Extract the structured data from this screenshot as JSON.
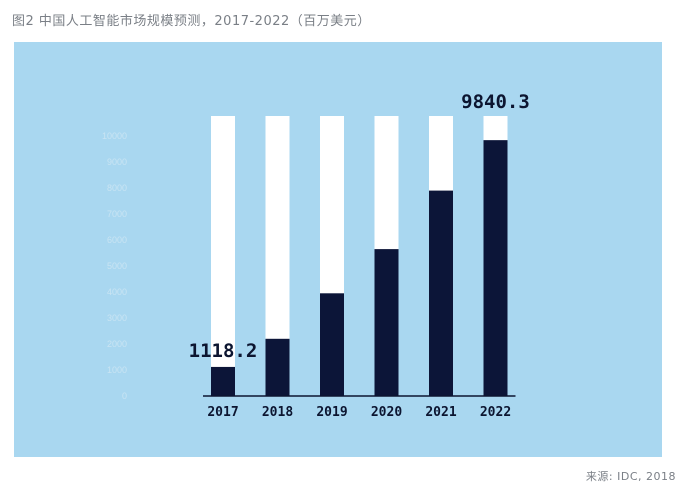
{
  "figure": {
    "title": "图2 中国人工智能市场规模预测，2017-2022（百万美元）",
    "source": "来源: IDC, 2018"
  },
  "colors": {
    "background_panel": "#a9d7f0",
    "bar_value": "#0c1538",
    "bar_track": "#ffffff",
    "tick_text": "#c9e4f3",
    "label_text": "#0c1530"
  },
  "chart_data": {
    "type": "bar",
    "title": "图2 中国人工智能市场规模预测，2017-2022（百万美元）",
    "xlabel": "",
    "ylabel": "",
    "categories": [
      "2017",
      "2018",
      "2019",
      "2020",
      "2021",
      "2022"
    ],
    "values": [
      1118.2,
      2200,
      3950,
      5650,
      7900,
      9840.3
    ],
    "ylim": [
      0,
      10000
    ],
    "yticks": [
      "0",
      "1000",
      "2000",
      "3000",
      "4000",
      "5000",
      "6000",
      "7000",
      "8000",
      "9000",
      "10000"
    ],
    "data_labels": [
      {
        "category": "2017",
        "text": "1118.2"
      },
      {
        "category": "2022",
        "text": "9840.3"
      }
    ],
    "grid": false,
    "legend": "none",
    "bar_style": "stacked-on-white-track"
  }
}
